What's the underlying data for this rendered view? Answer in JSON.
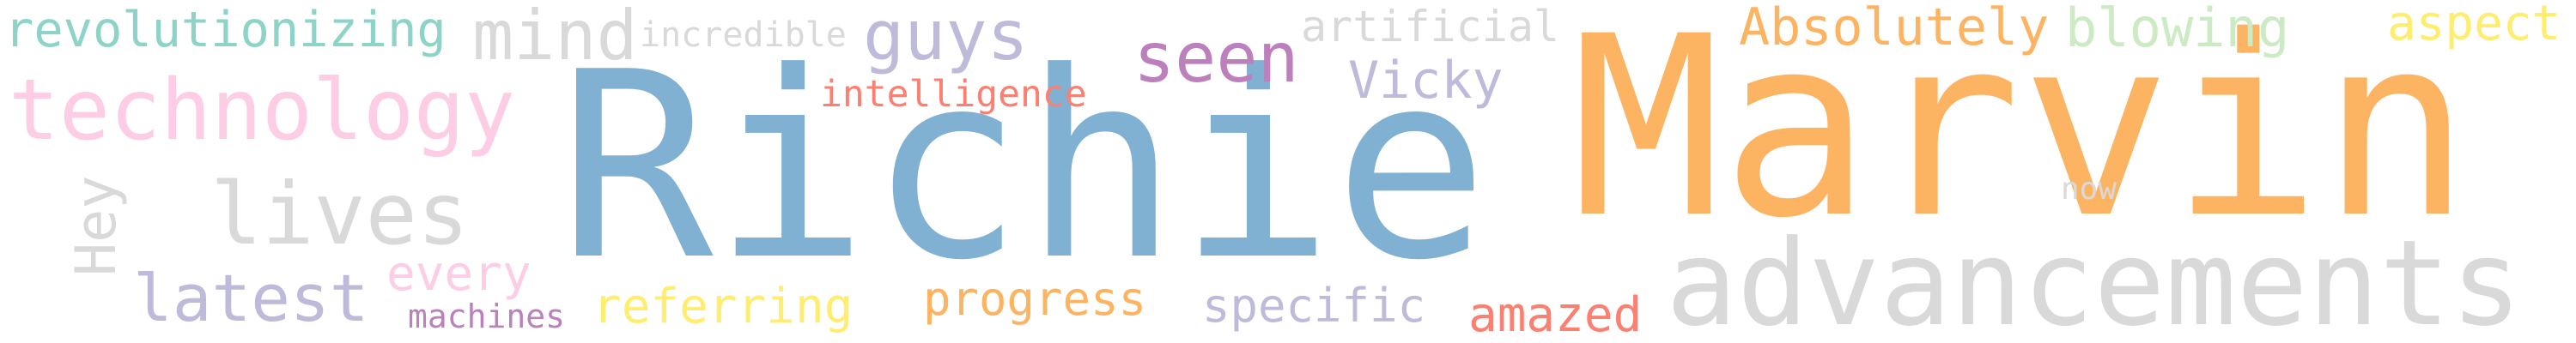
{
  "palette": {
    "blue": "#80B1D3",
    "orange": "#FDB462",
    "pink": "#FCCDE5",
    "grey": "#D9D9D9",
    "teal": "#8DD3C7",
    "lavender": "#BEBADA",
    "purple": "#BC80BD",
    "salmon": "#FB8072",
    "yellow": "#FFED6F",
    "mint": "#CCEBC5"
  },
  "words": [
    {
      "text": "Richie",
      "color_key": "blue"
    },
    {
      "text": "Marvin",
      "color_key": "orange"
    },
    {
      "text": "advancements",
      "color_key": "grey"
    },
    {
      "text": "technology",
      "color_key": "pink"
    },
    {
      "text": "revolutionizing",
      "color_key": "teal"
    },
    {
      "text": "mind",
      "color_key": "grey"
    },
    {
      "text": "incredible",
      "color_key": "grey"
    },
    {
      "text": "guys",
      "color_key": "lavender"
    },
    {
      "text": "seen",
      "color_key": "purple"
    },
    {
      "text": "Vicky",
      "color_key": "lavender"
    },
    {
      "text": "artificial",
      "color_key": "grey"
    },
    {
      "text": "intelligence",
      "color_key": "salmon"
    },
    {
      "text": "Absolutely",
      "color_key": "orange"
    },
    {
      "text": "blowing",
      "color_key": "mint"
    },
    {
      "text": "aspect",
      "color_key": "yellow"
    },
    {
      "text": "lives",
      "color_key": "grey"
    },
    {
      "text": "Hey",
      "color_key": "grey"
    },
    {
      "text": "latest",
      "color_key": "lavender"
    },
    {
      "text": "every",
      "color_key": "pink"
    },
    {
      "text": "machines",
      "color_key": "purple"
    },
    {
      "text": "referring",
      "color_key": "yellow"
    },
    {
      "text": "progress",
      "color_key": "orange"
    },
    {
      "text": "specific",
      "color_key": "lavender"
    },
    {
      "text": "amazed",
      "color_key": "salmon"
    },
    {
      "text": "now",
      "color_key": "grey"
    }
  ]
}
